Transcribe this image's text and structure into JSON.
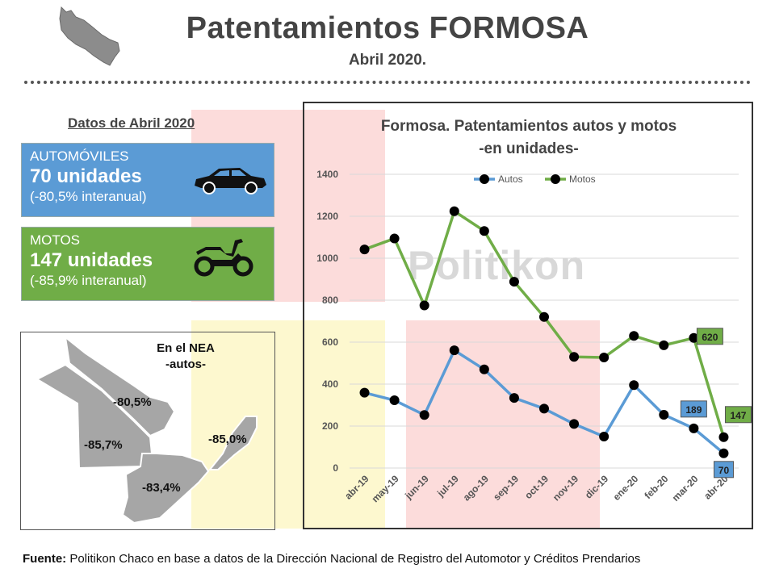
{
  "header": {
    "title": "Patentamientos FORMOSA",
    "subtitle": "Abril 2020."
  },
  "left_panel": {
    "section_title": "Datos de Abril 2020",
    "autos_card": {
      "label": "AUTOMÓVILES",
      "units": "70 unidades",
      "change": "(-80,5% interanual)",
      "icon": "car-icon",
      "color": "#5b9bd5"
    },
    "motos_card": {
      "label": "MOTOS",
      "units": "147 unidades",
      "change": "(-85,9% interanual)",
      "icon": "motorcycle-icon",
      "color": "#70ad47"
    },
    "nea_map": {
      "title": "En el NEA",
      "subtitle": "-autos-",
      "formosa_pct": "-80,5%",
      "chaco_pct": "-85,7%",
      "misiones_pct": "-85,0%",
      "corrientes_pct": "-83,4%"
    }
  },
  "chart_data": {
    "type": "line",
    "title": "Formosa. Patentamientos autos y motos",
    "subtitle": "-en unidades-",
    "categories": [
      "abr-19",
      "may-19",
      "jun-19",
      "jul-19",
      "ago-19",
      "sep-19",
      "oct-19",
      "nov-19",
      "dic-19",
      "ene-20",
      "feb-20",
      "mar-20",
      "abr-20"
    ],
    "series": [
      {
        "name": "Autos",
        "color": "#5b9bd5",
        "values": [
          359,
          323,
          253,
          561,
          470,
          334,
          283,
          210,
          150,
          395,
          254,
          189,
          70
        ]
      },
      {
        "name": "Motos",
        "color": "#70ad47",
        "values": [
          1042,
          1094,
          775,
          1224,
          1130,
          888,
          720,
          530,
          527,
          630,
          585,
          620,
          147
        ]
      }
    ],
    "data_labels": [
      {
        "series": "Autos",
        "category": "mar-20",
        "text": "189"
      },
      {
        "series": "Autos",
        "category": "abr-20",
        "text": "70"
      },
      {
        "series": "Motos",
        "category": "mar-20",
        "text": "620"
      },
      {
        "series": "Motos",
        "category": "abr-20",
        "text": "147"
      }
    ],
    "yticks": [
      "0",
      "200",
      "400",
      "600",
      "800",
      "1000",
      "1200",
      "1400"
    ],
    "ylim": [
      0,
      1400
    ],
    "grid": true,
    "legend": "top-center",
    "watermark": "Politikon"
  },
  "footer": {
    "label": "Fuente:",
    "text": " Politikon Chaco en base a datos de la Dirección Nacional de Registro del Automotor y Créditos Prendarios"
  }
}
